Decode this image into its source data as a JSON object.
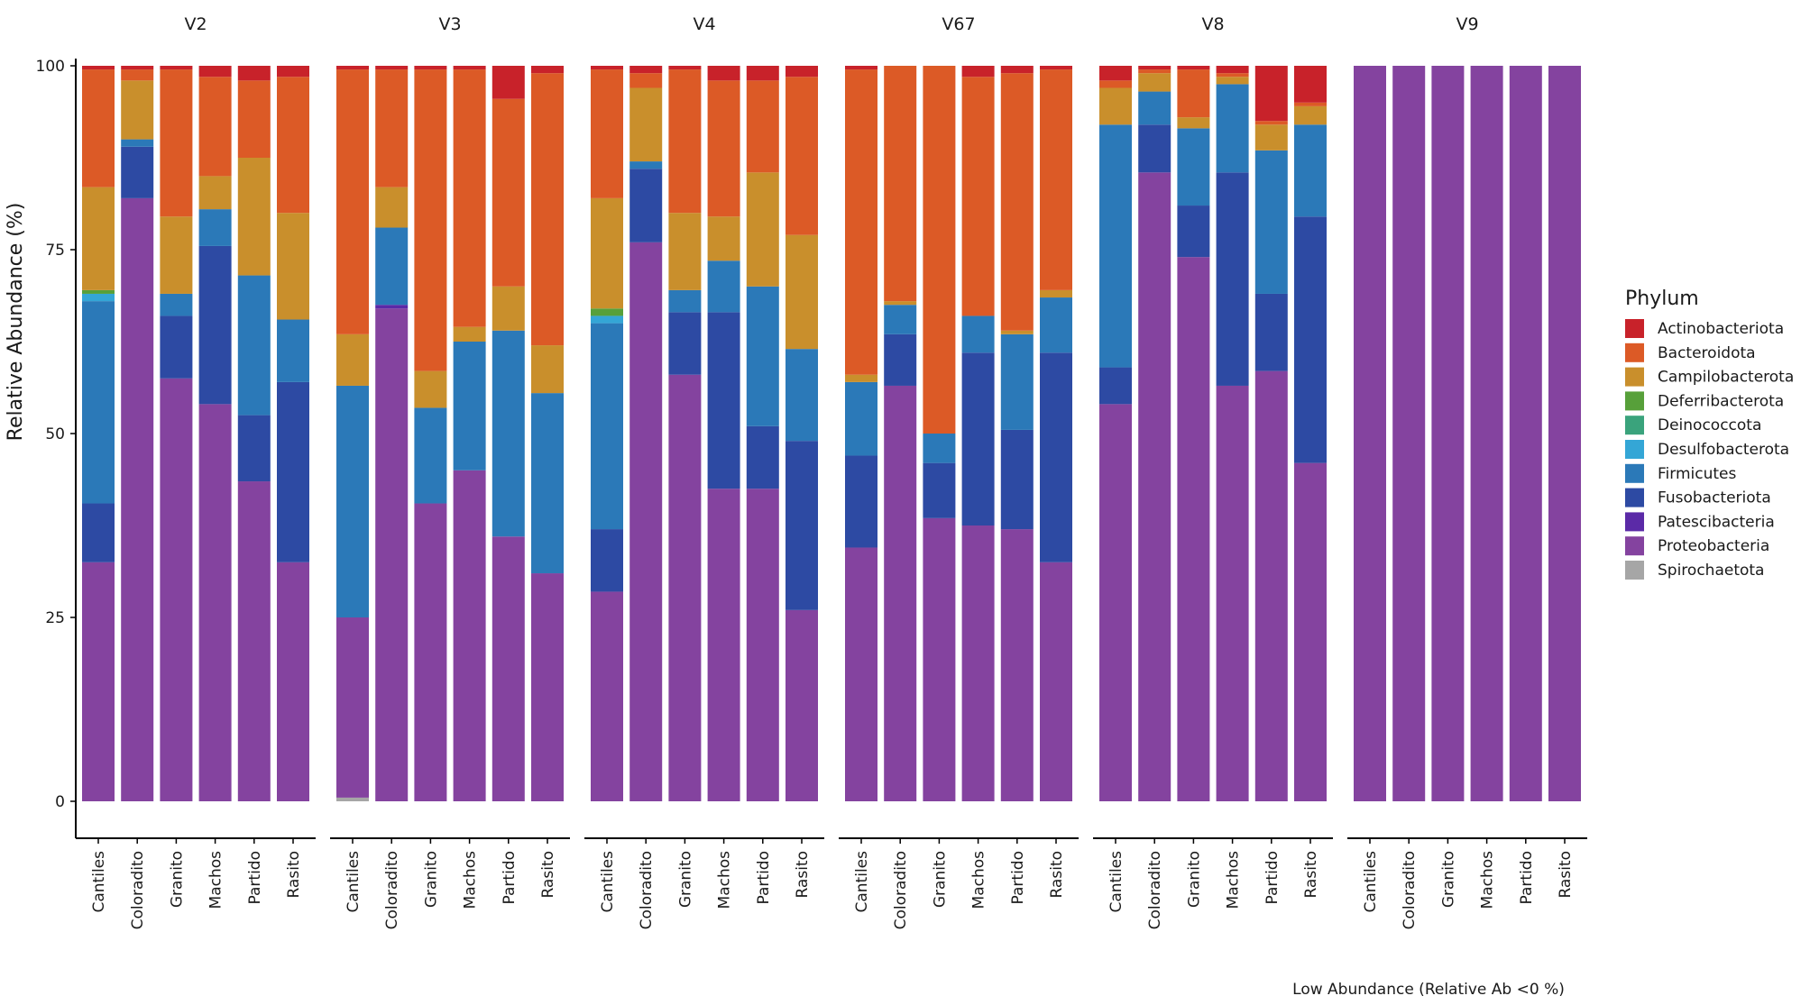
{
  "chart_data": {
    "type": "bar",
    "stacked": true,
    "ylabel": "Relative Abundance (%)",
    "xlabel": "",
    "ylim": [
      0,
      100
    ],
    "yticks": [
      0,
      25,
      50,
      75,
      100
    ],
    "caption": "Low Abundance (Relative Ab <0 %)",
    "legend": {
      "title": "Phylum",
      "position": "right",
      "entries": [
        "Actinobacteriota",
        "Bacteroidota",
        "Campilobacterota",
        "Deferribacterota",
        "Deinococcota",
        "Desulfobacterota",
        "Firmicutes",
        "Fusobacteriota",
        "Patescibacteria",
        "Proteobacteria",
        "Spirochaetota"
      ]
    },
    "colors": {
      "Actinobacteriota": "#c8222a",
      "Bacteroidota": "#dc5a26",
      "Campilobacterota": "#c98f2c",
      "Deferribacterota": "#57a03a",
      "Deinococcota": "#3aa37c",
      "Desulfobacterota": "#34a6d6",
      "Firmicutes": "#2b79b8",
      "Fusobacteriota": "#2d4aa3",
      "Patescibacteria": "#5b2aa7",
      "Proteobacteria": "#84439f",
      "Spirochaetota": "#a6a6a6"
    },
    "stack_order": [
      "Spirochaetota",
      "Proteobacteria",
      "Patescibacteria",
      "Fusobacteriota",
      "Firmicutes",
      "Desulfobacterota",
      "Deinococcota",
      "Deferribacterota",
      "Campilobacterota",
      "Bacteroidota",
      "Actinobacteriota"
    ],
    "categories": [
      "Cantiles",
      "Coloradito",
      "Granito",
      "Machos",
      "Partido",
      "Rasito"
    ],
    "panels": [
      {
        "title": "V2",
        "bars": [
          {
            "Proteobacteria": 32.5,
            "Fusobacteriota": 8,
            "Firmicutes": 27.5,
            "Desulfobacterota": 1,
            "Deferribacterota": 0.5,
            "Campilobacterota": 14,
            "Bacteroidota": 16,
            "Actinobacteriota": 0.5
          },
          {
            "Proteobacteria": 82,
            "Fusobacteriota": 7,
            "Firmicutes": 1,
            "Campilobacterota": 8,
            "Bacteroidota": 1.5,
            "Actinobacteriota": 0.5
          },
          {
            "Proteobacteria": 57.5,
            "Fusobacteriota": 8.5,
            "Firmicutes": 3,
            "Campilobacterota": 10.5,
            "Bacteroidota": 20,
            "Actinobacteriota": 0.5
          },
          {
            "Proteobacteria": 54,
            "Fusobacteriota": 21.5,
            "Firmicutes": 5,
            "Campilobacterota": 4.5,
            "Bacteroidota": 13.5,
            "Actinobacteriota": 1.5
          },
          {
            "Proteobacteria": 43.5,
            "Fusobacteriota": 9,
            "Firmicutes": 19,
            "Campilobacterota": 16,
            "Bacteroidota": 10.5,
            "Actinobacteriota": 2
          },
          {
            "Proteobacteria": 32.5,
            "Fusobacteriota": 24.5,
            "Firmicutes": 8.5,
            "Campilobacterota": 14.5,
            "Bacteroidota": 18.5,
            "Actinobacteriota": 1.5
          }
        ]
      },
      {
        "title": "V3",
        "bars": [
          {
            "Spirochaetota": 0.5,
            "Proteobacteria": 24.5,
            "Firmicutes": 31.5,
            "Campilobacterota": 7,
            "Bacteroidota": 36,
            "Actinobacteriota": 0.5
          },
          {
            "Proteobacteria": 67,
            "Patescibacteria": 0.5,
            "Firmicutes": 10.5,
            "Campilobacterota": 5.5,
            "Bacteroidota": 16,
            "Actinobacteriota": 0.5
          },
          {
            "Proteobacteria": 40.5,
            "Firmicutes": 13,
            "Campilobacterota": 5,
            "Bacteroidota": 41,
            "Actinobacteriota": 0.5
          },
          {
            "Proteobacteria": 45,
            "Firmicutes": 17.5,
            "Campilobacterota": 2,
            "Bacteroidota": 35,
            "Actinobacteriota": 0.5
          },
          {
            "Proteobacteria": 36,
            "Firmicutes": 28,
            "Campilobacterota": 6,
            "Bacteroidota": 25.5,
            "Actinobacteriota": 4.5
          },
          {
            "Proteobacteria": 31,
            "Firmicutes": 24.5,
            "Campilobacterota": 6.5,
            "Bacteroidota": 37,
            "Actinobacteriota": 1
          }
        ]
      },
      {
        "title": "V4",
        "bars": [
          {
            "Proteobacteria": 28.5,
            "Fusobacteriota": 8.5,
            "Firmicutes": 28,
            "Desulfobacterota": 1,
            "Deferribacterota": 1,
            "Campilobacterota": 15,
            "Bacteroidota": 17.5,
            "Actinobacteriota": 0.5
          },
          {
            "Proteobacteria": 76,
            "Fusobacteriota": 10,
            "Firmicutes": 1,
            "Campilobacterota": 10,
            "Bacteroidota": 2,
            "Actinobacteriota": 1
          },
          {
            "Proteobacteria": 58,
            "Fusobacteriota": 8.5,
            "Firmicutes": 3,
            "Campilobacterota": 10.5,
            "Bacteroidota": 19.5,
            "Actinobacteriota": 0.5
          },
          {
            "Proteobacteria": 42.5,
            "Fusobacteriota": 24,
            "Firmicutes": 7,
            "Campilobacterota": 6,
            "Bacteroidota": 18.5,
            "Actinobacteriota": 2
          },
          {
            "Proteobacteria": 42.5,
            "Fusobacteriota": 8.5,
            "Firmicutes": 19,
            "Campilobacterota": 15.5,
            "Bacteroidota": 12.5,
            "Actinobacteriota": 2
          },
          {
            "Proteobacteria": 26,
            "Fusobacteriota": 23,
            "Firmicutes": 12.5,
            "Campilobacterota": 15.5,
            "Bacteroidota": 21.5,
            "Actinobacteriota": 1.5
          }
        ]
      },
      {
        "title": "V67",
        "bars": [
          {
            "Proteobacteria": 34.5,
            "Fusobacteriota": 12.5,
            "Firmicutes": 10,
            "Campilobacterota": 1,
            "Bacteroidota": 41.5,
            "Actinobacteriota": 0.5
          },
          {
            "Proteobacteria": 56.5,
            "Fusobacteriota": 7,
            "Firmicutes": 4,
            "Campilobacterota": 0.5,
            "Bacteroidota": 32,
            "Actinobacteriota": 0
          },
          {
            "Proteobacteria": 38.5,
            "Fusobacteriota": 7.5,
            "Firmicutes": 4,
            "Bacteroidota": 50,
            "Actinobacteriota": 0
          },
          {
            "Proteobacteria": 37.5,
            "Fusobacteriota": 23.5,
            "Firmicutes": 5,
            "Bacteroidota": 32.5,
            "Actinobacteriota": 1.5
          },
          {
            "Proteobacteria": 37,
            "Fusobacteriota": 13.5,
            "Firmicutes": 13,
            "Campilobacterota": 0.5,
            "Bacteroidota": 35,
            "Actinobacteriota": 1
          },
          {
            "Proteobacteria": 32.5,
            "Fusobacteriota": 28.5,
            "Firmicutes": 7.5,
            "Campilobacterota": 1,
            "Bacteroidota": 30,
            "Actinobacteriota": 0.5
          }
        ]
      },
      {
        "title": "V8",
        "bars": [
          {
            "Proteobacteria": 54,
            "Fusobacteriota": 5,
            "Firmicutes": 33,
            "Campilobacterota": 5,
            "Bacteroidota": 1,
            "Actinobacteriota": 2
          },
          {
            "Proteobacteria": 85.5,
            "Fusobacteriota": 6.5,
            "Firmicutes": 4.5,
            "Campilobacterota": 2.5,
            "Bacteroidota": 0.5,
            "Actinobacteriota": 0.5
          },
          {
            "Proteobacteria": 74,
            "Fusobacteriota": 7,
            "Firmicutes": 10.5,
            "Campilobacterota": 1.5,
            "Bacteroidota": 6.5,
            "Actinobacteriota": 0.5
          },
          {
            "Proteobacteria": 56.5,
            "Fusobacteriota": 29,
            "Firmicutes": 12,
            "Campilobacterota": 1,
            "Bacteroidota": 0.5,
            "Actinobacteriota": 1
          },
          {
            "Proteobacteria": 58.5,
            "Fusobacteriota": 10.5,
            "Firmicutes": 19.5,
            "Campilobacterota": 3.5,
            "Bacteroidota": 0.5,
            "Actinobacteriota": 7.5
          },
          {
            "Proteobacteria": 46,
            "Fusobacteriota": 33.5,
            "Firmicutes": 12.5,
            "Campilobacterota": 2.5,
            "Bacteroidota": 0.5,
            "Actinobacteriota": 5
          }
        ]
      },
      {
        "title": "V9",
        "bars": [
          {
            "Proteobacteria": 100
          },
          {
            "Proteobacteria": 100
          },
          {
            "Proteobacteria": 100
          },
          {
            "Proteobacteria": 100
          },
          {
            "Proteobacteria": 100
          },
          {
            "Proteobacteria": 100
          }
        ]
      }
    ]
  }
}
